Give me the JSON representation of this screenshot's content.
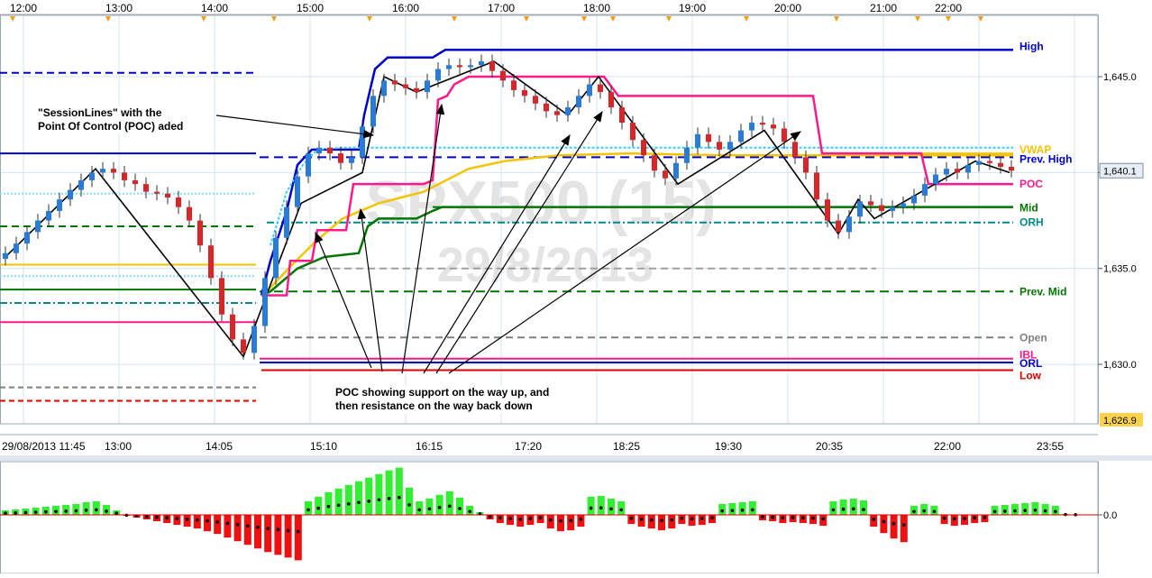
{
  "watermark": {
    "symbol": "SPX500 (15)",
    "date": "29/8/2013"
  },
  "annotations": {
    "session_lines": "\"SessionLines\" with the\nPoint Of Control (POC) aded",
    "poc_support": "POC showing support on the way up, and\nthen resistance on the way back down"
  },
  "colors": {
    "background": "#ffffff",
    "grid": "#d7e4ee",
    "axis_text": "#000000",
    "up_candle": "#2a7ad8",
    "down_candle": "#d6262a",
    "high": "#0000cc",
    "poc": "#ff1a8c",
    "mid": "#007700",
    "vwap": "#f5c400",
    "open": "#808080",
    "low": "#dd0000",
    "orh": "#008888",
    "histogram_up": "#33ee33",
    "histogram_down": "#ee1111",
    "price_badge": "#ffd24d"
  },
  "chart_data": [
    {
      "type": "candlestick",
      "instrument": "SPX500 (15)",
      "date": "29/8/2013",
      "top_time_labels": [
        "12:00",
        "13:00",
        "14:00",
        "15:00",
        "16:00",
        "17:00",
        "18:00",
        "19:00",
        "20:00",
        "21:00",
        "22:00"
      ],
      "x_tick_labels": [
        "29/08/2013 11:45",
        "13:00",
        "14:05",
        "15:10",
        "16:15",
        "17:20",
        "18:25",
        "19:30",
        "20:35",
        "22:00",
        "23:55"
      ],
      "y_tick_labels": [
        "1,645.0",
        "1,640.0",
        "1,635.0",
        "1,630.0"
      ],
      "ylim": [
        1626.9,
        1648.2
      ],
      "current_price_label": "1,640.1",
      "last_price_label": "1,626.9",
      "grid": true,
      "candles_approx_close": [
        1635.8,
        1636.3,
        1636.9,
        1637.5,
        1638.0,
        1638.6,
        1639.1,
        1639.6,
        1640.0,
        1640.2,
        1640.0,
        1639.6,
        1639.4,
        1639.0,
        1638.9,
        1638.7,
        1638.2,
        1637.5,
        1636.2,
        1634.5,
        1632.6,
        1631.3,
        1630.6,
        1632.0,
        1634.5,
        1636.6,
        1638.2,
        1639.8,
        1641.0,
        1641.3,
        1641.0,
        1640.5,
        1640.8,
        1642.4,
        1644.0,
        1644.8,
        1644.6,
        1644.4,
        1644.2,
        1644.8,
        1645.4,
        1645.6,
        1645.5,
        1645.6,
        1645.8,
        1645.3,
        1644.8,
        1644.3,
        1644.0,
        1643.6,
        1643.2,
        1643.0,
        1643.4,
        1644.0,
        1644.6,
        1644.2,
        1643.4,
        1642.6,
        1641.7,
        1640.9,
        1640.1,
        1639.7,
        1640.5,
        1641.3,
        1642.0,
        1641.6,
        1641.2,
        1641.6,
        1642.2,
        1642.6,
        1642.5,
        1642.3,
        1641.6,
        1640.8,
        1640.0,
        1638.6,
        1637.5,
        1636.9,
        1637.7,
        1638.5,
        1638.3,
        1638.0,
        1638.2,
        1638.4,
        1638.8,
        1639.4,
        1639.9,
        1640.2,
        1640.0,
        1640.4,
        1640.6,
        1640.5,
        1640.3,
        1640.1
      ],
      "horizontal_lines": [
        {
          "label": "High",
          "value": 1646.4,
          "color": "#0000cc"
        },
        {
          "label": "Prev. High",
          "value": 1640.8,
          "color": "#0000cc"
        },
        {
          "label": "VWAP",
          "value": 1641.0,
          "color": "#f5c400"
        },
        {
          "label": "POC",
          "value": 1639.4,
          "color": "#ff1a8c"
        },
        {
          "label": "Mid",
          "value": 1638.2,
          "color": "#007700"
        },
        {
          "label": "ORH",
          "value": 1637.4,
          "color": "#008888"
        },
        {
          "label": "Prev. Mid",
          "value": 1633.8,
          "color": "#007700"
        },
        {
          "label": "Open",
          "value": 1631.4,
          "color": "#808080"
        },
        {
          "label": "IBL",
          "value": 1630.3,
          "color": "#ff1a8c"
        },
        {
          "label": "ORL",
          "value": 1630.1,
          "color": "#0000cc"
        },
        {
          "label": "Low",
          "value": 1629.7,
          "color": "#dd0000"
        }
      ]
    },
    {
      "type": "bar",
      "name": "histogram",
      "y_tick_labels": [
        "0.0"
      ],
      "values": [
        0.1,
        0.12,
        0.14,
        0.16,
        0.18,
        0.2,
        0.22,
        0.24,
        0.28,
        0.3,
        0.22,
        0.1,
        -0.02,
        -0.06,
        -0.1,
        -0.14,
        -0.18,
        -0.22,
        -0.26,
        -0.3,
        -0.36,
        -0.42,
        -0.5,
        -0.58,
        -0.66,
        -0.74,
        -0.82,
        -0.88,
        -0.94,
        -1.0,
        0.3,
        0.4,
        0.5,
        0.58,
        0.66,
        0.74,
        0.82,
        0.9,
        0.98,
        1.04,
        0.6,
        0.3,
        0.36,
        0.44,
        0.52,
        0.38,
        0.2,
        0.06,
        -0.1,
        -0.18,
        -0.22,
        -0.26,
        -0.22,
        -0.18,
        -0.3,
        -0.36,
        -0.34,
        -0.26,
        0.4,
        0.42,
        0.36,
        0.3,
        -0.2,
        -0.26,
        -0.3,
        -0.34,
        -0.3,
        -0.2,
        -0.24,
        -0.22,
        -0.18,
        0.24,
        0.26,
        0.28,
        0.3,
        -0.12,
        -0.14,
        -0.18,
        -0.16,
        -0.18,
        -0.2,
        -0.24,
        0.3,
        0.34,
        0.36,
        0.32,
        -0.26,
        -0.4,
        -0.52,
        -0.6,
        0.2,
        0.24,
        0.2,
        -0.2,
        -0.24,
        -0.22,
        -0.18,
        -0.16,
        0.2,
        0.22,
        0.24,
        0.26,
        0.28,
        0.24,
        0.2,
        0.02,
        0.01
      ]
    }
  ]
}
